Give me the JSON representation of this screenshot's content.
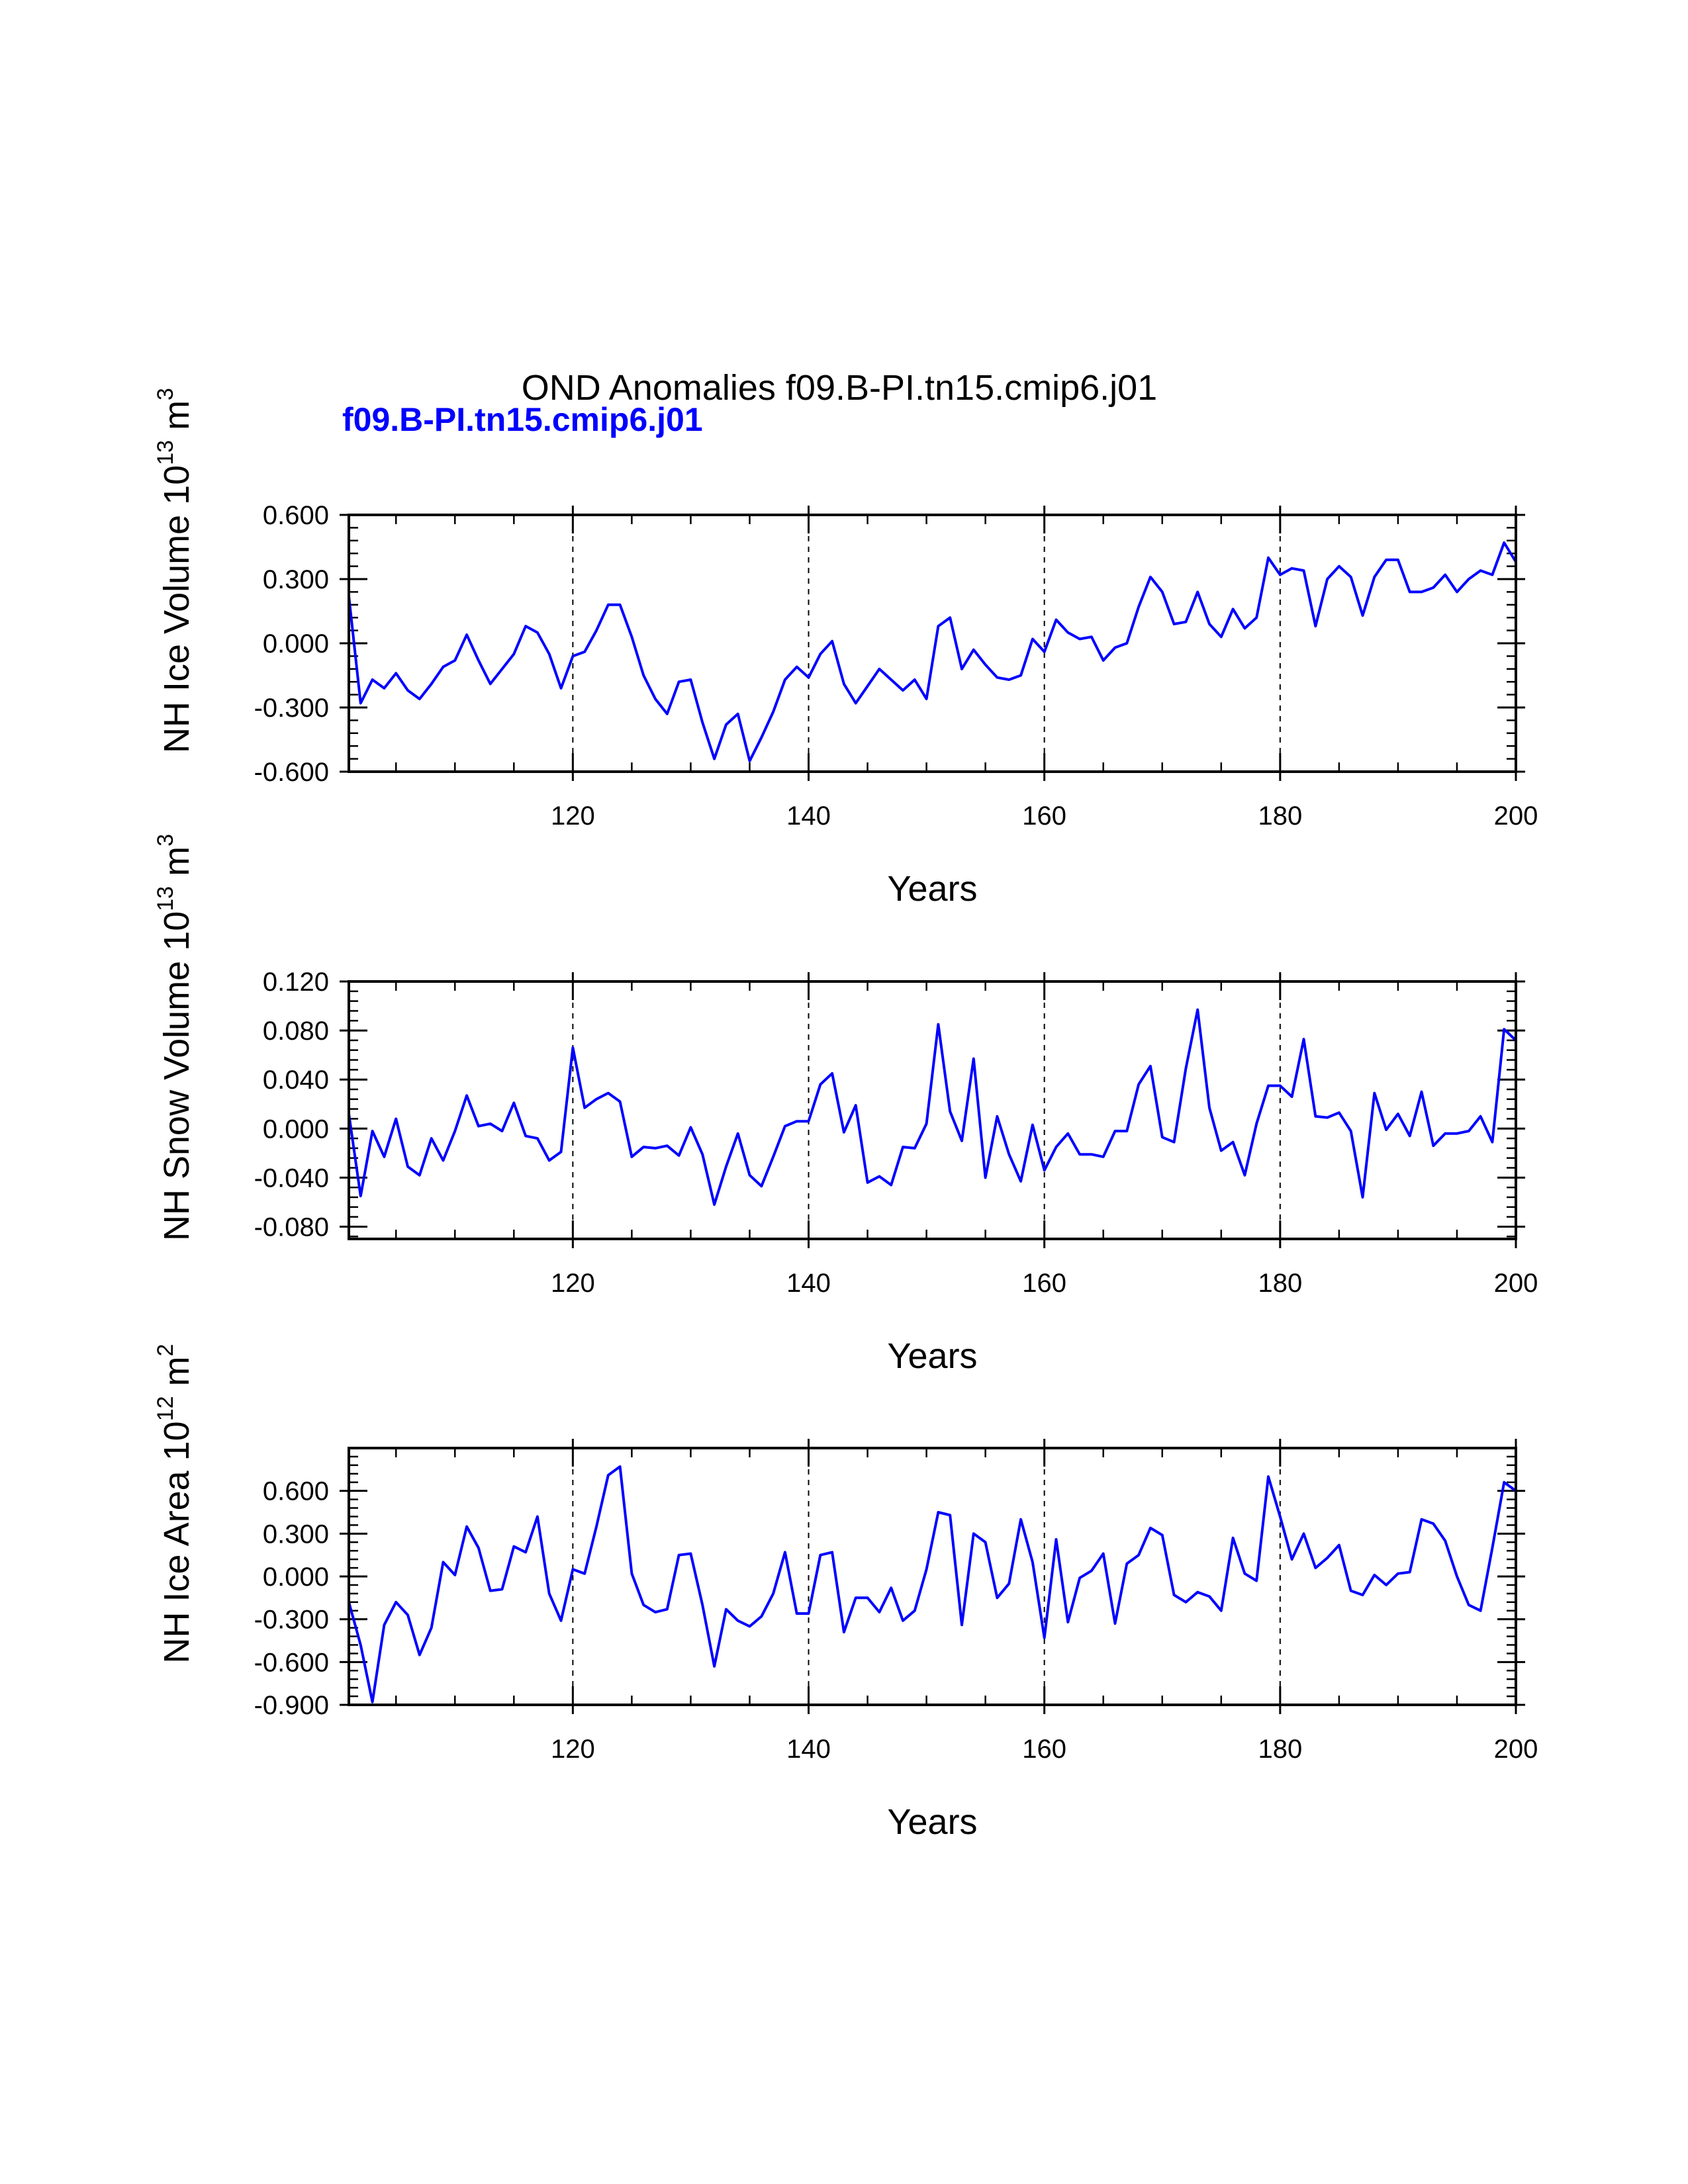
{
  "figure": {
    "title": "OND Anomalies f09.B-PI.tn15.cmip6.j01",
    "subtitle": "f09.B-PI.tn15.cmip6.j01"
  },
  "colors": {
    "series": "#0000ff",
    "axes": "#000000",
    "background": "#ffffff"
  },
  "chart_data": [
    {
      "type": "line",
      "ylabel": "NH Ice Volume 10^13 m^3",
      "ylabel_main": "NH Ice Volume 10",
      "ylabel_exp": "13",
      "ylabel_unit": " m",
      "ylabel_unit_exp": "3",
      "xlabel": "Years",
      "xlim": [
        101,
        200
      ],
      "ylim": [
        -0.6,
        0.6
      ],
      "yticks": [
        -0.6,
        -0.3,
        0.0,
        0.3,
        0.6
      ],
      "ytick_labels": [
        "-0.600",
        "-0.300",
        "0.000",
        "0.300",
        "0.600"
      ],
      "xticks": [
        120,
        140,
        160,
        180,
        200
      ],
      "xtick_labels": [
        "120",
        "140",
        "160",
        "180",
        "200"
      ],
      "grid": "dashed vertical at major x ticks",
      "x_start": 101,
      "values": [
        0.22,
        -0.28,
        -0.17,
        -0.21,
        -0.14,
        -0.22,
        -0.26,
        -0.19,
        -0.11,
        -0.08,
        0.04,
        -0.08,
        -0.19,
        -0.12,
        -0.05,
        0.08,
        0.05,
        -0.05,
        -0.21,
        -0.06,
        -0.04,
        0.06,
        0.18,
        0.18,
        0.03,
        -0.15,
        -0.26,
        -0.33,
        -0.18,
        -0.17,
        -0.37,
        -0.54,
        -0.38,
        -0.33,
        -0.55,
        -0.44,
        -0.32,
        -0.17,
        -0.11,
        -0.16,
        -0.05,
        0.01,
        -0.19,
        -0.28,
        -0.2,
        -0.12,
        -0.17,
        -0.22,
        -0.17,
        -0.26,
        0.08,
        0.12,
        -0.12,
        -0.03,
        -0.1,
        -0.16,
        -0.17,
        -0.15,
        0.02,
        -0.04,
        0.11,
        0.05,
        0.02,
        0.03,
        -0.08,
        -0.02,
        0.0,
        0.17,
        0.31,
        0.24,
        0.09,
        0.1,
        0.24,
        0.09,
        0.03,
        0.16,
        0.07,
        0.12,
        0.4,
        0.32,
        0.35,
        0.34,
        0.08,
        0.3,
        0.36,
        0.31,
        0.13,
        0.31,
        0.39,
        0.39,
        0.24,
        0.24,
        0.26,
        0.32,
        0.24,
        0.3,
        0.34,
        0.32,
        0.47,
        0.38
      ]
    },
    {
      "type": "line",
      "ylabel": "NH Snow Volume 10^13 m^3",
      "ylabel_main": "NH Snow Volume 10",
      "ylabel_exp": "13",
      "ylabel_unit": " m",
      "ylabel_unit_exp": "3",
      "xlabel": "Years",
      "xlim": [
        101,
        200
      ],
      "ylim": [
        -0.09,
        0.12
      ],
      "yticks": [
        -0.08,
        -0.04,
        0.0,
        0.04,
        0.08,
        0.12
      ],
      "ytick_labels": [
        "-0.080",
        "-0.040",
        "0.000",
        "0.040",
        "0.080",
        "0.120"
      ],
      "xticks": [
        120,
        140,
        160,
        180,
        200
      ],
      "xtick_labels": [
        "120",
        "140",
        "160",
        "180",
        "200"
      ],
      "grid": "dashed vertical at major x ticks",
      "x_start": 101,
      "values": [
        0.012,
        -0.055,
        -0.002,
        -0.023,
        0.008,
        -0.031,
        -0.038,
        -0.008,
        -0.026,
        -0.002,
        0.027,
        0.002,
        0.004,
        -0.002,
        0.021,
        -0.006,
        -0.008,
        -0.026,
        -0.019,
        0.066,
        0.017,
        0.024,
        0.029,
        0.022,
        -0.023,
        -0.015,
        -0.016,
        -0.014,
        -0.022,
        0.001,
        -0.021,
        -0.062,
        -0.031,
        -0.004,
        -0.038,
        -0.047,
        -0.023,
        0.002,
        0.006,
        0.006,
        0.036,
        0.045,
        -0.003,
        0.019,
        -0.044,
        -0.039,
        -0.046,
        -0.015,
        -0.016,
        0.004,
        0.085,
        0.014,
        -0.01,
        0.057,
        -0.04,
        0.01,
        -0.021,
        -0.043,
        0.003,
        -0.034,
        -0.015,
        -0.004,
        -0.021,
        -0.021,
        -0.023,
        -0.002,
        -0.002,
        0.036,
        0.051,
        -0.007,
        -0.011,
        0.049,
        0.097,
        0.017,
        -0.018,
        -0.011,
        -0.038,
        0.004,
        0.035,
        0.035,
        0.026,
        0.073,
        0.01,
        0.009,
        0.013,
        -0.002,
        -0.056,
        0.029,
        -0.001,
        0.012,
        -0.006,
        0.03,
        -0.014,
        -0.004,
        -0.004,
        -0.002,
        0.01,
        -0.011,
        0.081,
        0.072
      ]
    },
    {
      "type": "line",
      "ylabel": "NH Ice Area 10^12 m^2",
      "ylabel_main": "NH Ice Area 10",
      "ylabel_exp": "12",
      "ylabel_unit": " m",
      "ylabel_unit_exp": "2",
      "xlabel": "Years",
      "xlim": [
        101,
        200
      ],
      "ylim": [
        -0.9,
        0.9
      ],
      "yticks": [
        -0.9,
        -0.6,
        -0.3,
        0.0,
        0.3,
        0.6
      ],
      "ytick_labels": [
        "-0.900",
        "-0.600",
        "-0.300",
        "0.000",
        "0.300",
        "0.600"
      ],
      "xticks": [
        120,
        140,
        160,
        180,
        200
      ],
      "xtick_labels": [
        "120",
        "140",
        "160",
        "180",
        "200"
      ],
      "grid": "dashed vertical at major x ticks",
      "x_start": 101,
      "values": [
        -0.18,
        -0.48,
        -0.88,
        -0.34,
        -0.18,
        -0.27,
        -0.55,
        -0.36,
        0.1,
        0.01,
        0.35,
        0.2,
        -0.1,
        -0.09,
        0.21,
        0.17,
        0.42,
        -0.12,
        -0.31,
        0.05,
        0.02,
        0.35,
        0.71,
        0.77,
        0.02,
        -0.2,
        -0.25,
        -0.23,
        0.15,
        0.16,
        -0.2,
        -0.63,
        -0.23,
        -0.31,
        -0.35,
        -0.28,
        -0.12,
        0.17,
        -0.26,
        -0.26,
        0.15,
        0.17,
        -0.39,
        -0.15,
        -0.15,
        -0.25,
        -0.08,
        -0.31,
        -0.24,
        0.05,
        0.45,
        0.43,
        -0.34,
        0.3,
        0.24,
        -0.15,
        -0.05,
        0.4,
        0.1,
        -0.43,
        0.26,
        -0.32,
        -0.01,
        0.04,
        0.16,
        -0.33,
        0.09,
        0.15,
        0.34,
        0.29,
        -0.13,
        -0.18,
        -0.11,
        -0.14,
        -0.24,
        0.27,
        0.02,
        -0.03,
        0.7,
        0.42,
        0.12,
        0.3,
        0.06,
        0.13,
        0.22,
        -0.1,
        -0.13,
        0.01,
        -0.06,
        0.02,
        0.03,
        0.4,
        0.37,
        0.25,
        0.0,
        -0.2,
        -0.24,
        0.2,
        0.66,
        0.6
      ]
    }
  ]
}
